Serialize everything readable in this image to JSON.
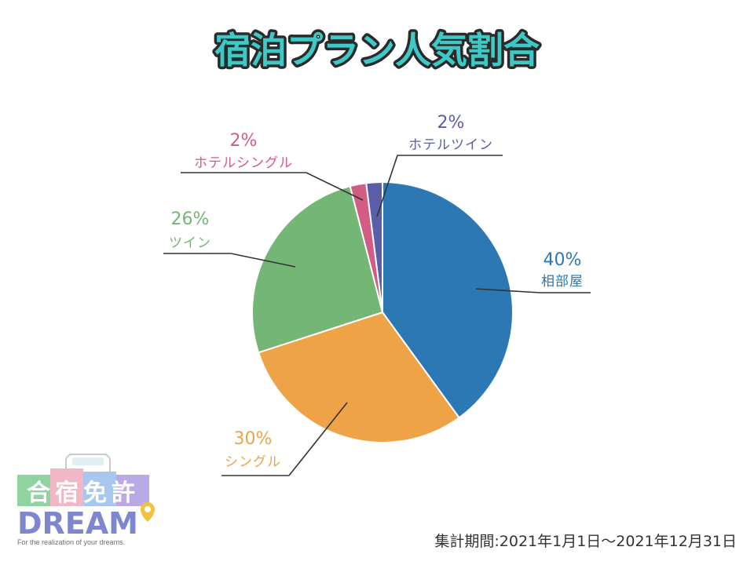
{
  "title": "宿泊プラン人気割合",
  "period_text": "集計期間:2021年1月1日～2021年12月31日",
  "logo": {
    "brand_jp": "合宿免許",
    "brand_en": "DREAM",
    "tagline": "For the realization of your dreams."
  },
  "colors": {
    "title_fill": "#3ec9c7",
    "title_stroke": "#2a2a2a"
  },
  "chart_data": {
    "type": "pie",
    "title": "宿泊プラン人気割合",
    "slices": [
      {
        "name": "相部屋",
        "value": 40,
        "label": "40%",
        "color": "#2b78b5"
      },
      {
        "name": "シングル",
        "value": 30,
        "label": "30%",
        "color": "#eea446"
      },
      {
        "name": "ツイン",
        "value": 26,
        "label": "26%",
        "color": "#74b675"
      },
      {
        "name": "ホテルシングル",
        "value": 2,
        "label": "2%",
        "color": "#d35c84"
      },
      {
        "name": "ホテルツイン",
        "value": 2,
        "label": "2%",
        "color": "#5a5ea8"
      }
    ],
    "start_angle_deg": 0,
    "direction": "clockwise"
  }
}
